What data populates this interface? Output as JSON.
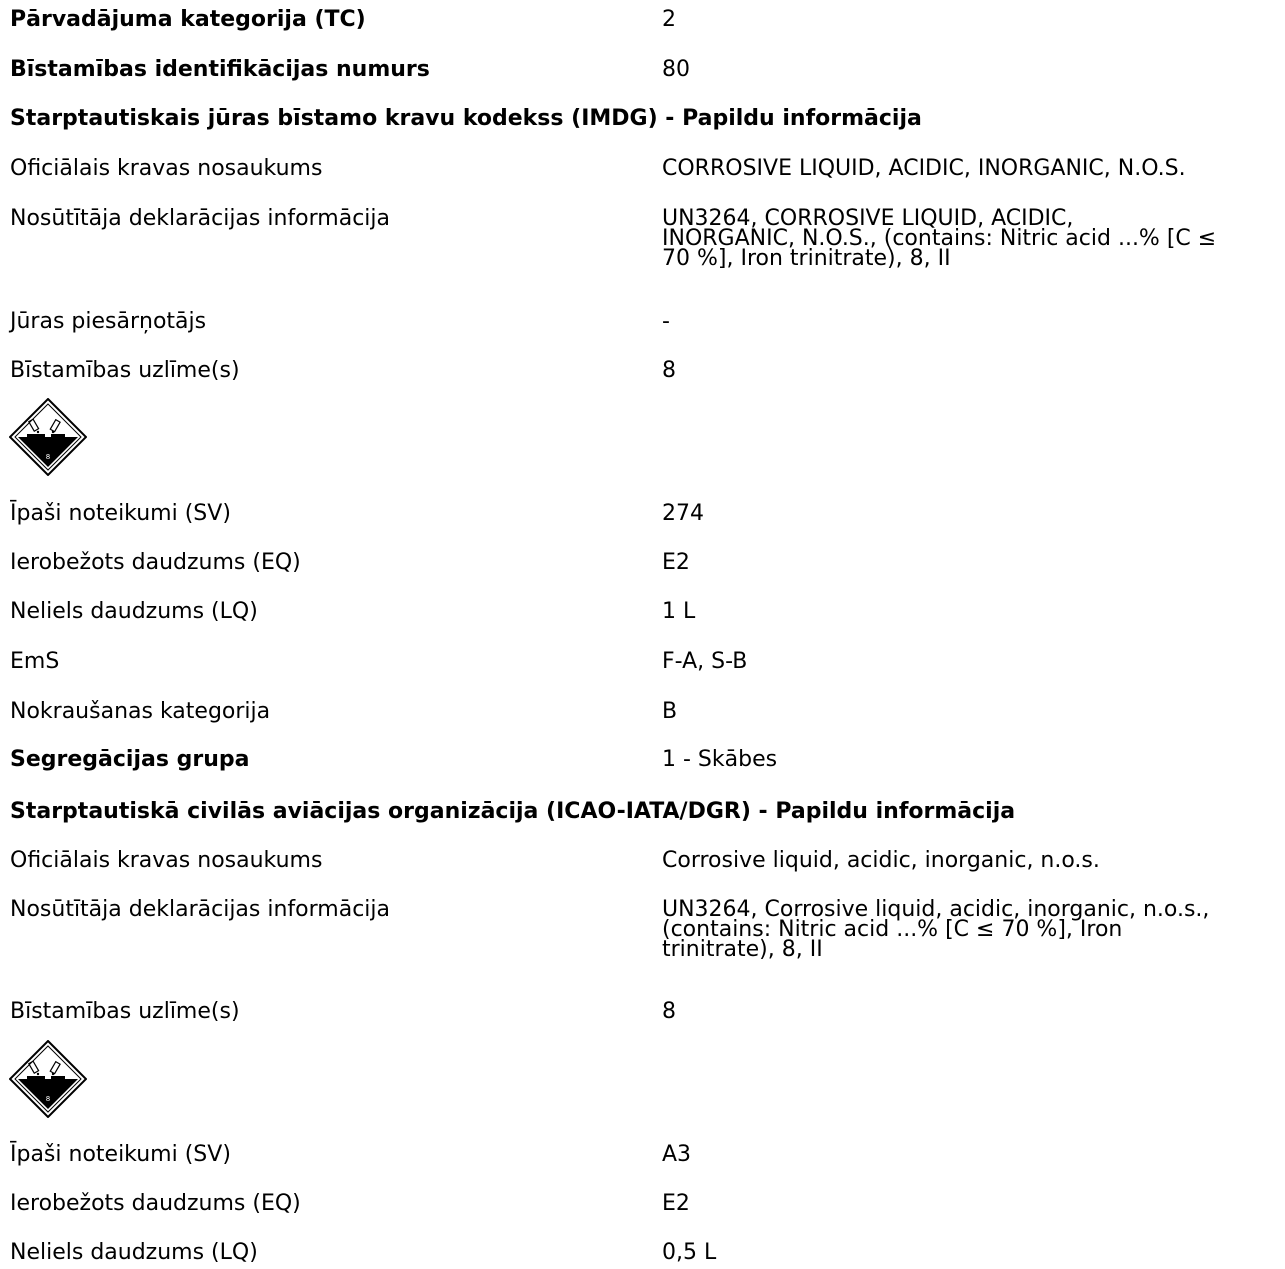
{
  "top": {
    "rows": [
      {
        "label": "Pārvadājuma kategorija (TC)",
        "value": "2"
      },
      {
        "label": "Bīstamības identifikācijas numurs",
        "value": "80"
      }
    ]
  },
  "imdg": {
    "heading": "Starptautiskais jūras bīstamo kravu kodekss (IMDG) - Papildu informācija",
    "proper_name_label": "Oficiālais kravas nosaukums",
    "proper_name": "CORROSIVE LIQUID, ACIDIC, INORGANIC, N.O.S.",
    "shipper_label": "Nosūtītāja deklarācijas informācija",
    "shipper_lines": [
      "UN3264, CORROSIVE LIQUID, ACIDIC,",
      "INORGANIC, N.O.S., (contains: Nitric acid ...% [C ≤",
      "70 %], Iron trinitrate), 8, II"
    ],
    "pollutant_label": "Jūras piesārņotājs",
    "pollutant": "-",
    "labels_label": "Bīstamības uzlīme(s)",
    "labels": "8",
    "pictogram_number": "8",
    "rows": [
      {
        "label": "Īpaši noteikumi (SV)",
        "value": "274"
      },
      {
        "label": "Ierobežots daudzums (EQ)",
        "value": "E2"
      },
      {
        "label": "Neliels daudzums (LQ)",
        "value": "1 L"
      },
      {
        "label": "EmS",
        "value": "F-A, S-B"
      },
      {
        "label": "Nokraušanas kategorija",
        "value": "B"
      }
    ],
    "segregation_label": "Segregācijas grupa",
    "segregation": "1 - Skābes"
  },
  "icao": {
    "heading": "Starptautiskā civilās aviācijas organizācija (ICAO-IATA/DGR) - Papildu informācija",
    "proper_name_label": "Oficiālais kravas nosaukums",
    "proper_name": "Corrosive liquid, acidic, inorganic, n.o.s.",
    "shipper_label": "Nosūtītāja deklarācijas informācija",
    "shipper_lines": [
      "UN3264, Corrosive liquid, acidic, inorganic, n.o.s.,",
      "(contains: Nitric acid ...% [C ≤ 70 %], Iron",
      "trinitrate), 8, II"
    ],
    "labels_label": "Bīstamības uzlīme(s)",
    "labels": "8",
    "pictogram_number": "8",
    "rows": [
      {
        "label": "Īpaši noteikumi (SV)",
        "value": "A3"
      },
      {
        "label": "Ierobežots daudzums (EQ)",
        "value": "E2"
      },
      {
        "label": "Neliels daudzums (LQ)",
        "value": "0,5 L"
      }
    ]
  }
}
